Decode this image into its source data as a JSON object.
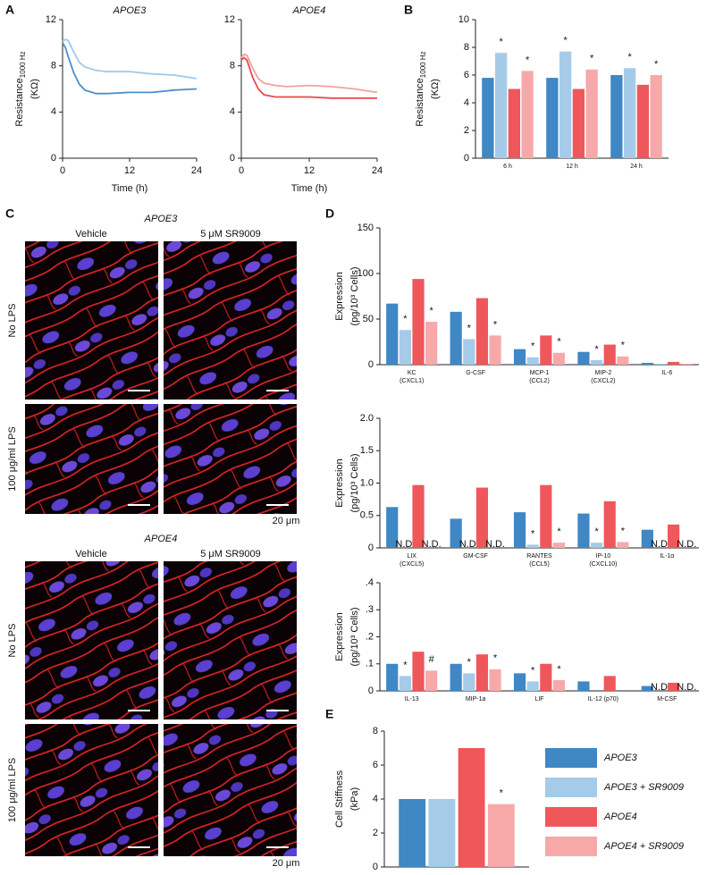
{
  "panel_labels": [
    "A",
    "B",
    "C",
    "D",
    "E"
  ],
  "microscopy": {
    "groups": [
      {
        "title": "APOE3"
      },
      {
        "title": "APOE4"
      }
    ],
    "columns": [
      "Vehicle",
      "5 μM SR9009"
    ],
    "rows": [
      "No LPS",
      "100 μg/ml LPS"
    ],
    "scale_bar": "20 μm"
  },
  "chart_data": [
    {
      "type": "line",
      "title": "APOE3",
      "xlabel": "Time (h)",
      "ylabel": "Resistance",
      "ylabel_subscript": "1000 Hz",
      "ylabel_unit": "(KΩ)",
      "x": [
        0,
        0.5,
        1,
        2,
        3,
        4,
        6,
        8,
        12,
        16,
        20,
        24
      ],
      "xlim": [
        0,
        24
      ],
      "xticks": [
        0,
        12,
        24
      ],
      "ylim": [
        0,
        12
      ],
      "yticks": [
        0,
        4,
        8,
        12
      ],
      "series": [
        {
          "color": "#4a90cf",
          "values": [
            10.0,
            9.6,
            8.8,
            7.4,
            6.4,
            5.9,
            5.6,
            5.6,
            5.7,
            5.7,
            5.9,
            6.0
          ]
        },
        {
          "color": "#9fc9ea",
          "values": [
            10.1,
            10.3,
            10.2,
            9.2,
            8.3,
            7.9,
            7.6,
            7.5,
            7.5,
            7.3,
            7.2,
            6.9
          ]
        }
      ]
    },
    {
      "type": "line",
      "title": "APOE4",
      "xlabel": "Time (h)",
      "x": [
        0,
        0.5,
        1,
        2,
        3,
        4,
        6,
        8,
        12,
        16,
        20,
        24
      ],
      "xlim": [
        0,
        24
      ],
      "xticks": [
        0,
        12,
        24
      ],
      "ylim": [
        0,
        12
      ],
      "yticks": [
        0,
        4,
        8,
        12
      ],
      "series": [
        {
          "color": "#e94a4f",
          "values": [
            8.5,
            8.7,
            8.5,
            7.0,
            6.0,
            5.5,
            5.3,
            5.3,
            5.3,
            5.2,
            5.2,
            5.2
          ]
        },
        {
          "color": "#f4a0a0",
          "values": [
            8.7,
            9.0,
            8.9,
            7.8,
            6.9,
            6.5,
            6.3,
            6.2,
            6.3,
            6.2,
            6.0,
            5.7
          ]
        }
      ]
    },
    {
      "type": "bar",
      "ylabel": "Resistance",
      "ylabel_subscript": "1000 Hz",
      "ylabel_unit": "(KΩ)",
      "categories": [
        "6 h",
        "12 h",
        "24 h"
      ],
      "ylim": [
        0,
        10
      ],
      "yticks": [
        0,
        2,
        4,
        6,
        8,
        10
      ],
      "series": [
        {
          "color": "#3f87c5",
          "values": [
            5.8,
            5.8,
            6.0
          ]
        },
        {
          "color": "#a5cbe9",
          "values": [
            7.6,
            7.7,
            6.5
          ],
          "annotations": [
            "*",
            "*",
            "*"
          ]
        },
        {
          "color": "#f0575a",
          "values": [
            5.0,
            5.0,
            5.3
          ]
        },
        {
          "color": "#f7a9a9",
          "values": [
            6.3,
            6.4,
            6.0
          ],
          "annotations": [
            "*",
            "*",
            "*"
          ]
        }
      ]
    },
    {
      "type": "bar",
      "ylabel": "Expression",
      "ylabel_unit": "(pg/10³ Cells)",
      "categories": [
        "KC",
        "G-CSF",
        "MCP-1",
        "MIP-2",
        "IL-6"
      ],
      "sublabels": [
        "(CXCL1)",
        null,
        "(CCL2)",
        "(CXCL2)",
        null
      ],
      "ylim": [
        0,
        150
      ],
      "yticks": [
        0,
        50,
        100,
        150
      ],
      "series": [
        {
          "color": "#3f87c5",
          "values": [
            67,
            58,
            17,
            14,
            2
          ]
        },
        {
          "color": "#a5cbe9",
          "values": [
            38,
            28,
            8,
            5,
            1
          ],
          "annotations": [
            "*",
            "*",
            "*",
            "*",
            null
          ]
        },
        {
          "color": "#f0575a",
          "values": [
            94,
            73,
            32,
            22,
            3
          ]
        },
        {
          "color": "#f7a9a9",
          "values": [
            47,
            32,
            13,
            9,
            1
          ],
          "annotations": [
            "*",
            "*",
            "*",
            "*",
            null
          ]
        }
      ]
    },
    {
      "type": "bar",
      "ylabel": "Expression",
      "ylabel_unit": "(pg/10³ Cells)",
      "categories": [
        "LIX",
        "GM-CSF",
        "RANTES",
        "IP-10",
        "IL-1α"
      ],
      "sublabels": [
        "(CXCL5)",
        null,
        "(CCL5)",
        "(CXCL10)",
        null
      ],
      "ylim": [
        0,
        2
      ],
      "yticks": [
        0,
        0.5,
        {
          "value": 1,
          "label": "1.0"
        },
        1.5,
        {
          "value": 2,
          "label": "2.0"
        }
      ],
      "series": [
        {
          "color": "#3f87c5",
          "values": [
            0.63,
            0.45,
            0.55,
            0.53,
            0.28
          ]
        },
        {
          "color": "#a5cbe9",
          "values": [
            null,
            null,
            0.05,
            0.08,
            null
          ],
          "value_labels": [
            "N.D.",
            "N.D.",
            null,
            null,
            "N.D."
          ],
          "annotations": [
            null,
            null,
            "*",
            "*",
            null
          ]
        },
        {
          "color": "#f0575a",
          "values": [
            0.97,
            0.93,
            0.97,
            0.72,
            0.36
          ]
        },
        {
          "color": "#f7a9a9",
          "values": [
            null,
            null,
            0.08,
            0.09,
            null
          ],
          "value_labels": [
            "N.D.",
            "N.D.",
            null,
            null,
            "N.D."
          ],
          "annotations": [
            null,
            null,
            "*",
            "*",
            null
          ]
        }
      ]
    },
    {
      "type": "bar",
      "ylabel": "Expression",
      "ylabel_unit": "(pg/10³ Cells)",
      "categories": [
        "IL-13",
        "MIP-1a",
        "LIF",
        "IL-12 (p70)",
        "M-CSF"
      ],
      "ylim": [
        0,
        0.4
      ],
      "yticks": [
        0,
        {
          "value": 0.1,
          "label": ".1"
        },
        {
          "value": 0.2,
          "label": ".2"
        },
        {
          "value": 0.3,
          "label": ".3"
        },
        {
          "value": 0.4,
          "label": ".4"
        }
      ],
      "series": [
        {
          "color": "#3f87c5",
          "values": [
            0.1,
            0.1,
            0.065,
            0.035,
            0.018
          ]
        },
        {
          "color": "#a5cbe9",
          "values": [
            0.055,
            0.065,
            0.035,
            null,
            null
          ],
          "value_labels": [
            null,
            null,
            null,
            null,
            "N.D."
          ],
          "annotations": [
            "*",
            "*",
            "*",
            null,
            null
          ]
        },
        {
          "color": "#f0575a",
          "values": [
            0.145,
            0.135,
            0.1,
            0.055,
            0.03
          ]
        },
        {
          "color": "#f7a9a9",
          "values": [
            0.075,
            0.08,
            0.04,
            null,
            null
          ],
          "value_labels": [
            null,
            null,
            null,
            null,
            "N.D."
          ],
          "annotations": [
            "#",
            "*",
            "*",
            null,
            null
          ]
        }
      ]
    },
    {
      "type": "bar",
      "ylabel": "Cell Stiffness",
      "ylabel_unit": "(kPa)",
      "ylim": [
        0,
        8
      ],
      "yticks": [
        0,
        2,
        4,
        6,
        8
      ],
      "legend": "right",
      "series": [
        {
          "name": "APOE3",
          "color": "#3f87c5",
          "values": [
            4.0
          ]
        },
        {
          "name": "APOE3 + SR9009",
          "color": "#a5cbe9",
          "values": [
            4.0
          ]
        },
        {
          "name": "APOE4",
          "color": "#f0575a",
          "values": [
            7.0
          ]
        },
        {
          "name": "APOE4 + SR9009",
          "color": "#f7a9a9",
          "values": [
            3.7
          ],
          "annotations": [
            "*"
          ]
        }
      ]
    }
  ]
}
